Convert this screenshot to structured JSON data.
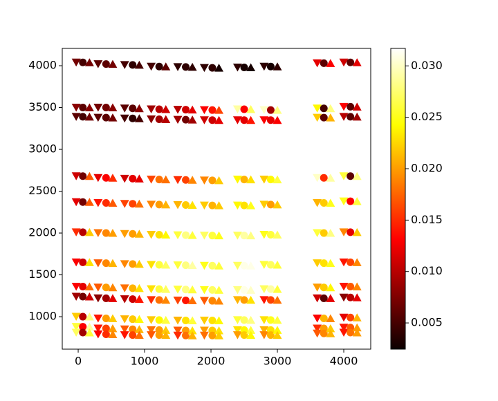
{
  "chart_data": {
    "type": "scatter",
    "xlim": [
      -240,
      4406
    ],
    "ylim": [
      612,
      4207
    ],
    "xticks": [
      0,
      1000,
      2000,
      3000,
      4000
    ],
    "yticks": [
      1000,
      1500,
      2000,
      2500,
      3000,
      3500,
      4000
    ],
    "colormap": "hot",
    "clim": [
      0.00245,
      0.0317
    ],
    "cticks": [
      0.005,
      {
        "value": 0.01,
        "label": "0.010"
      },
      0.015,
      {
        "value": 0.02,
        "label": "0.020"
      },
      0.025,
      {
        "value": 0.03,
        "label": "0.030"
      }
    ],
    "y": [
      [
        4040,
        4020,
        4010,
        3990,
        3985,
        3975,
        3980,
        3990,
        4030,
        4040
      ],
      [
        3500,
        3500,
        3490,
        3480,
        3475,
        3470,
        3480,
        3470,
        3490,
        3510
      ],
      [
        3390,
        3380,
        3370,
        3360,
        3355,
        3350,
        3350,
        3350,
        3380,
        3390
      ],
      [
        2680,
        2660,
        2650,
        2640,
        2635,
        2630,
        2640,
        2640,
        2660,
        2680
      ],
      [
        2370,
        2360,
        2350,
        2340,
        2335,
        2330,
        2330,
        2340,
        2360,
        2380
      ],
      [
        2010,
        2000,
        1990,
        1980,
        1975,
        1970,
        1970,
        1980,
        2000,
        2010
      ],
      [
        1650,
        1640,
        1630,
        1620,
        1615,
        1610,
        1610,
        1620,
        1640,
        1650
      ],
      [
        1360,
        1350,
        1340,
        1330,
        1325,
        1320,
        1320,
        1330,
        1350,
        1360
      ],
      [
        1240,
        1220,
        1210,
        1200,
        1195,
        1190,
        1200,
        1200,
        1220,
        1230
      ],
      [
        1000,
        980,
        970,
        960,
        955,
        955,
        960,
        960,
        980,
        990
      ],
      [
        880,
        860,
        850,
        840,
        835,
        835,
        840,
        840,
        860,
        870
      ],
      [
        810,
        790,
        780,
        780,
        775,
        775,
        780,
        780,
        800,
        810
      ]
    ],
    "series": [
      {
        "marker": "v",
        "x": [
          -30,
          300,
          700,
          1100,
          1500,
          1900,
          2400,
          2800,
          3600,
          4000
        ],
        "c": [
          [
            0.007,
            0.006,
            0.005,
            0.005,
            0.004,
            0.004,
            0.004,
            0.004,
            0.012,
            0.011
          ],
          [
            0.008,
            0.007,
            0.006,
            0.009,
            0.01,
            0.013,
            0.029,
            0.03,
            0.024,
            0.013
          ],
          [
            0.006,
            0.006,
            0.005,
            0.008,
            0.009,
            0.011,
            0.012,
            0.013,
            0.022,
            0.01
          ],
          [
            0.011,
            0.012,
            0.011,
            0.016,
            0.015,
            0.019,
            0.024,
            0.022,
            0.03,
            0.026
          ],
          [
            0.012,
            0.014,
            0.016,
            0.019,
            0.021,
            0.022,
            0.024,
            0.022,
            0.021,
            0.025
          ],
          [
            0.015,
            0.018,
            0.02,
            0.022,
            0.026,
            0.027,
            0.027,
            0.025,
            0.026,
            0.019
          ],
          [
            0.013,
            0.017,
            0.019,
            0.023,
            0.026,
            0.025,
            0.027,
            0.026,
            0.022,
            0.014
          ],
          [
            0.013,
            0.017,
            0.018,
            0.023,
            0.026,
            0.025,
            0.028,
            0.027,
            0.02,
            0.014
          ],
          [
            0.009,
            0.008,
            0.01,
            0.015,
            0.016,
            0.017,
            0.021,
            0.014,
            0.011,
            0.008
          ],
          [
            0.022,
            0.014,
            0.021,
            0.022,
            0.021,
            0.022,
            0.026,
            0.023,
            0.013,
            0.012
          ],
          [
            0.026,
            0.014,
            0.017,
            0.018,
            0.017,
            0.02,
            0.023,
            0.021,
            0.015,
            0.014
          ],
          [
            0.027,
            0.013,
            0.014,
            0.017,
            0.015,
            0.018,
            0.02,
            0.019,
            0.017,
            0.014
          ]
        ]
      },
      {
        "marker": "o",
        "x": [
          70,
          420,
          820,
          1220,
          1620,
          2020,
          2500,
          2900,
          3700,
          4100
        ],
        "c": [
          [
            0.005,
            0.006,
            0.004,
            0.004,
            0.004,
            0.004,
            0.003,
            0.003,
            0.006,
            0.006
          ],
          [
            0.006,
            0.007,
            0.006,
            0.01,
            0.011,
            0.014,
            0.013,
            0.009,
            0.005,
            0.006
          ],
          [
            0.005,
            0.006,
            0.004,
            0.009,
            0.007,
            0.011,
            0.012,
            0.012,
            0.006,
            0.006
          ],
          [
            0.007,
            0.013,
            0.012,
            0.018,
            0.016,
            0.02,
            0.021,
            0.024,
            0.015,
            0.006
          ],
          [
            0.007,
            0.015,
            0.016,
            0.02,
            0.022,
            0.021,
            0.023,
            0.02,
            0.022,
            0.013
          ],
          [
            0.01,
            0.019,
            0.02,
            0.023,
            0.028,
            0.026,
            0.029,
            0.026,
            0.022,
            0.012
          ],
          [
            0.011,
            0.019,
            0.02,
            0.026,
            0.028,
            0.027,
            0.031,
            0.027,
            0.023,
            0.016
          ],
          [
            0.012,
            0.02,
            0.021,
            0.026,
            0.028,
            0.027,
            0.031,
            0.029,
            0.022,
            0.017
          ],
          [
            0.007,
            0.009,
            0.011,
            0.018,
            0.014,
            0.019,
            0.02,
            0.016,
            0.006,
            0.01
          ],
          [
            0.01,
            0.02,
            0.022,
            0.024,
            0.023,
            0.023,
            0.027,
            0.025,
            0.021,
            0.016
          ],
          [
            0.013,
            0.016,
            0.019,
            0.02,
            0.02,
            0.022,
            0.024,
            0.023,
            0.02,
            0.017
          ],
          [
            0.009,
            0.015,
            0.016,
            0.02,
            0.018,
            0.02,
            0.022,
            0.021,
            0.019,
            0.018
          ]
        ]
      },
      {
        "marker": "^",
        "x": [
          170,
          520,
          920,
          1320,
          1720,
          2120,
          2600,
          3000,
          3800,
          4200
        ],
        "c": [
          [
            0.007,
            0.007,
            0.005,
            0.006,
            0.004,
            0.003,
            0.003,
            0.004,
            0.013,
            0.012
          ],
          [
            0.008,
            0.008,
            0.008,
            0.011,
            0.012,
            0.016,
            0.027,
            0.028,
            0.028,
            0.011
          ],
          [
            0.007,
            0.007,
            0.005,
            0.01,
            0.009,
            0.012,
            0.014,
            0.013,
            0.021,
            0.009
          ],
          [
            0.017,
            0.015,
            0.012,
            0.018,
            0.019,
            0.022,
            0.023,
            0.026,
            0.029,
            0.028
          ],
          [
            0.017,
            0.017,
            0.018,
            0.021,
            0.023,
            0.022,
            0.025,
            0.022,
            0.025,
            0.026
          ],
          [
            0.022,
            0.02,
            0.021,
            0.024,
            0.026,
            0.025,
            0.028,
            0.027,
            0.028,
            0.022
          ],
          [
            0.023,
            0.021,
            0.022,
            0.027,
            0.029,
            0.026,
            0.031,
            0.026,
            0.025,
            0.019
          ],
          [
            0.018,
            0.019,
            0.023,
            0.027,
            0.026,
            0.026,
            0.03,
            0.026,
            0.024,
            0.019
          ],
          [
            0.011,
            0.012,
            0.014,
            0.019,
            0.018,
            0.019,
            0.023,
            0.018,
            0.012,
            0.012
          ],
          [
            0.028,
            0.022,
            0.024,
            0.026,
            0.026,
            0.024,
            0.028,
            0.026,
            0.019,
            0.021
          ],
          [
            0.029,
            0.02,
            0.021,
            0.022,
            0.023,
            0.023,
            0.026,
            0.024,
            0.022,
            0.02
          ],
          [
            0.026,
            0.019,
            0.018,
            0.021,
            0.021,
            0.022,
            0.024,
            0.022,
            0.021,
            0.02
          ]
        ]
      }
    ]
  }
}
